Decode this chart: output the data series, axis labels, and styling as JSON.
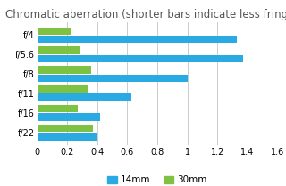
{
  "title": "Chromatic aberration (shorter bars indicate less fringing)",
  "categories": [
    "f/4",
    "f/5.6",
    "f/8",
    "f/11",
    "f/16",
    "f/22"
  ],
  "series_14mm": [
    1.33,
    1.37,
    1.0,
    0.63,
    0.42,
    0.4
  ],
  "series_30mm": [
    0.22,
    0.28,
    0.36,
    0.34,
    0.27,
    0.37
  ],
  "color_14mm": "#29aae2",
  "color_30mm": "#7dc242",
  "xlim": [
    0,
    1.6
  ],
  "xticks": [
    0,
    0.2,
    0.4,
    0.6,
    0.8,
    1.0,
    1.2,
    1.4,
    1.6
  ],
  "xtick_labels": [
    "0",
    "0.2",
    "0.4",
    "0.6",
    "0.8",
    "1",
    "1.2",
    "1.4",
    "1.6"
  ],
  "legend_labels": [
    "14mm",
    "30mm"
  ],
  "background_color": "#ffffff",
  "grid_color": "#cccccc",
  "title_fontsize": 8.5,
  "tick_fontsize": 7,
  "legend_fontsize": 7.5
}
